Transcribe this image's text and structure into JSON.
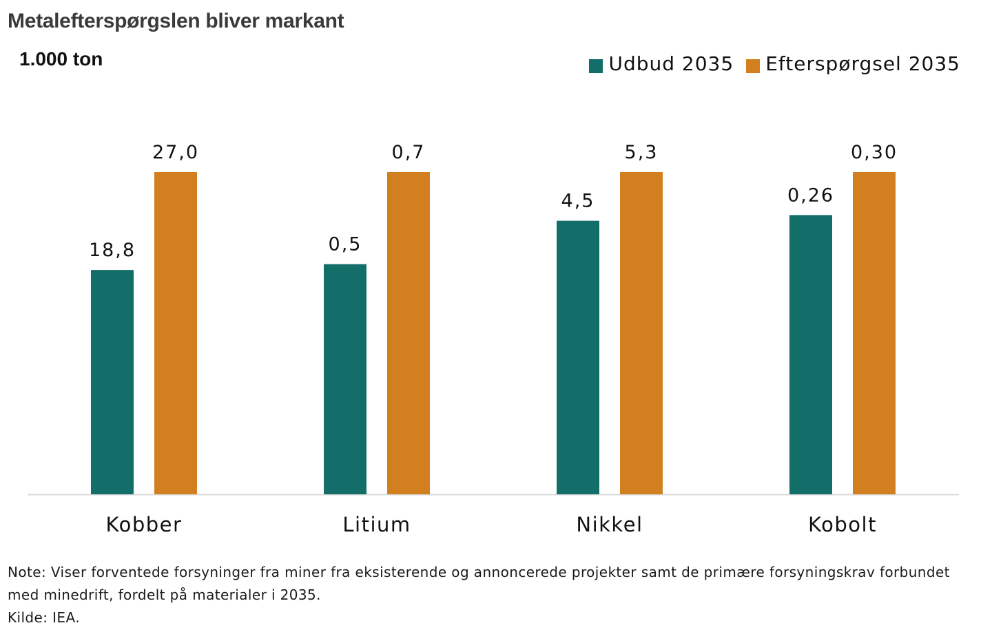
{
  "title": "Metalefterspørgslen bliver markant",
  "unit": "1.000 ton",
  "chart_data": {
    "type": "bar",
    "title": "Metalefterspørgslen bliver markant",
    "ylabel": "1.000 ton",
    "categories": [
      "Kobber",
      "Litium",
      "Nikkel",
      "Kobolt"
    ],
    "series": [
      {
        "name": "Udbud 2035",
        "color": "#136e69",
        "values": [
          18.8,
          0.5,
          4.5,
          0.26
        ],
        "labels": [
          "18,8",
          "0,5",
          "4,5",
          "0,26"
        ]
      },
      {
        "name": "Efterspørgsel 2035",
        "color": "#d27f1f",
        "values": [
          27.0,
          0.7,
          5.3,
          0.3
        ],
        "labels": [
          "27,0",
          "0,7",
          "5,3",
          "0,30"
        ]
      }
    ],
    "scaling": "each category normalized to its demand value",
    "grid": false,
    "legend": "top-right"
  },
  "note_lines": [
    "Note: Viser forventede forsyninger fra miner fra eksisterende og annoncerede projekter samt de primære forsyningskrav forbundet",
    "med minedrift, fordelt på materialer i 2035."
  ],
  "source": "Kilde: IEA."
}
